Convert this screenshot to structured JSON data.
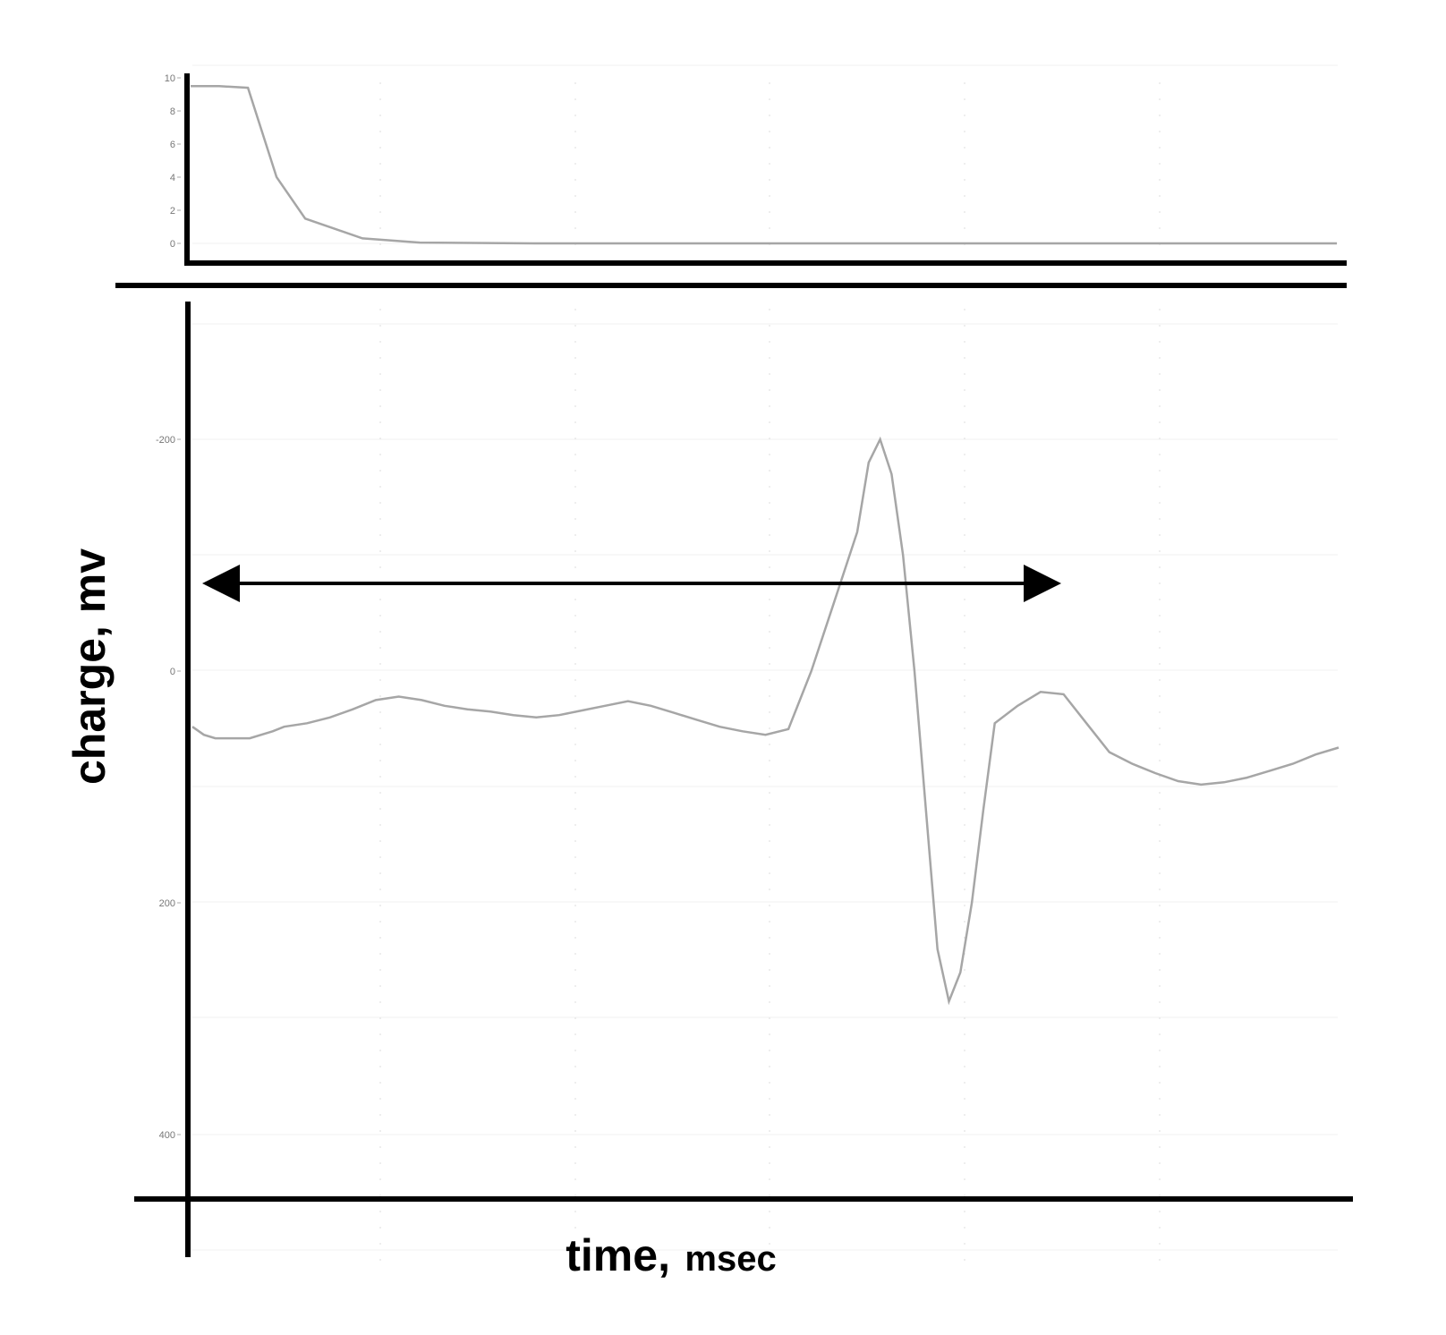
{
  "chart_data": [
    {
      "type": "line",
      "ylim": [
        0,
        10
      ],
      "y_ticks": [
        "0",
        "2",
        "4",
        "6",
        "8",
        "10"
      ],
      "grid": true,
      "series": [
        {
          "x": [
            0,
            0.25,
            0.5,
            0.75,
            1,
            1.5,
            2,
            3,
            10
          ],
          "y": [
            9.5,
            9.5,
            9.4,
            4,
            1.5,
            0.3,
            0.05,
            0,
            0
          ]
        }
      ]
    },
    {
      "type": "line",
      "ylabel": "charge, mv",
      "xlabel": "time, msec",
      "xlabel_main": "time,",
      "xlabel_unit": "msec",
      "ylim": [
        -200,
        400
      ],
      "y_ticks": [
        "-200",
        "0",
        "200",
        "400"
      ],
      "grid": true,
      "annotation": "double-headed arrow spanning from the start of the trace to the positive peak",
      "series": [
        {
          "x": [
            0,
            0.1,
            0.2,
            0.3,
            0.5,
            0.7,
            0.8,
            1.0,
            1.2,
            1.4,
            1.6,
            1.8,
            2.0,
            2.2,
            2.4,
            2.6,
            2.8,
            3.0,
            3.2,
            3.4,
            3.6,
            3.8,
            4.0,
            4.2,
            4.4,
            4.6,
            4.8,
            5.0,
            5.2,
            5.4,
            5.6,
            5.8,
            5.9,
            6.0,
            6.1,
            6.2,
            6.3,
            6.4,
            6.5,
            6.6,
            6.7,
            6.8,
            6.9,
            7.0,
            7.2,
            7.4,
            7.6,
            7.8,
            8.0,
            8.2,
            8.4,
            8.6,
            8.8,
            9.0,
            9.2,
            9.4,
            9.6,
            9.8,
            10.0
          ],
          "y": [
            48,
            55,
            58,
            58,
            58,
            52,
            48,
            45,
            40,
            33,
            25,
            22,
            25,
            30,
            33,
            35,
            38,
            40,
            38,
            34,
            30,
            26,
            30,
            36,
            42,
            48,
            52,
            55,
            50,
            0,
            -60,
            -120,
            -180,
            -200,
            -170,
            -100,
            0,
            120,
            240,
            285,
            260,
            200,
            120,
            45,
            30,
            18,
            20,
            45,
            70,
            80,
            88,
            95,
            98,
            96,
            92,
            86,
            80,
            72,
            66
          ]
        }
      ]
    }
  ]
}
